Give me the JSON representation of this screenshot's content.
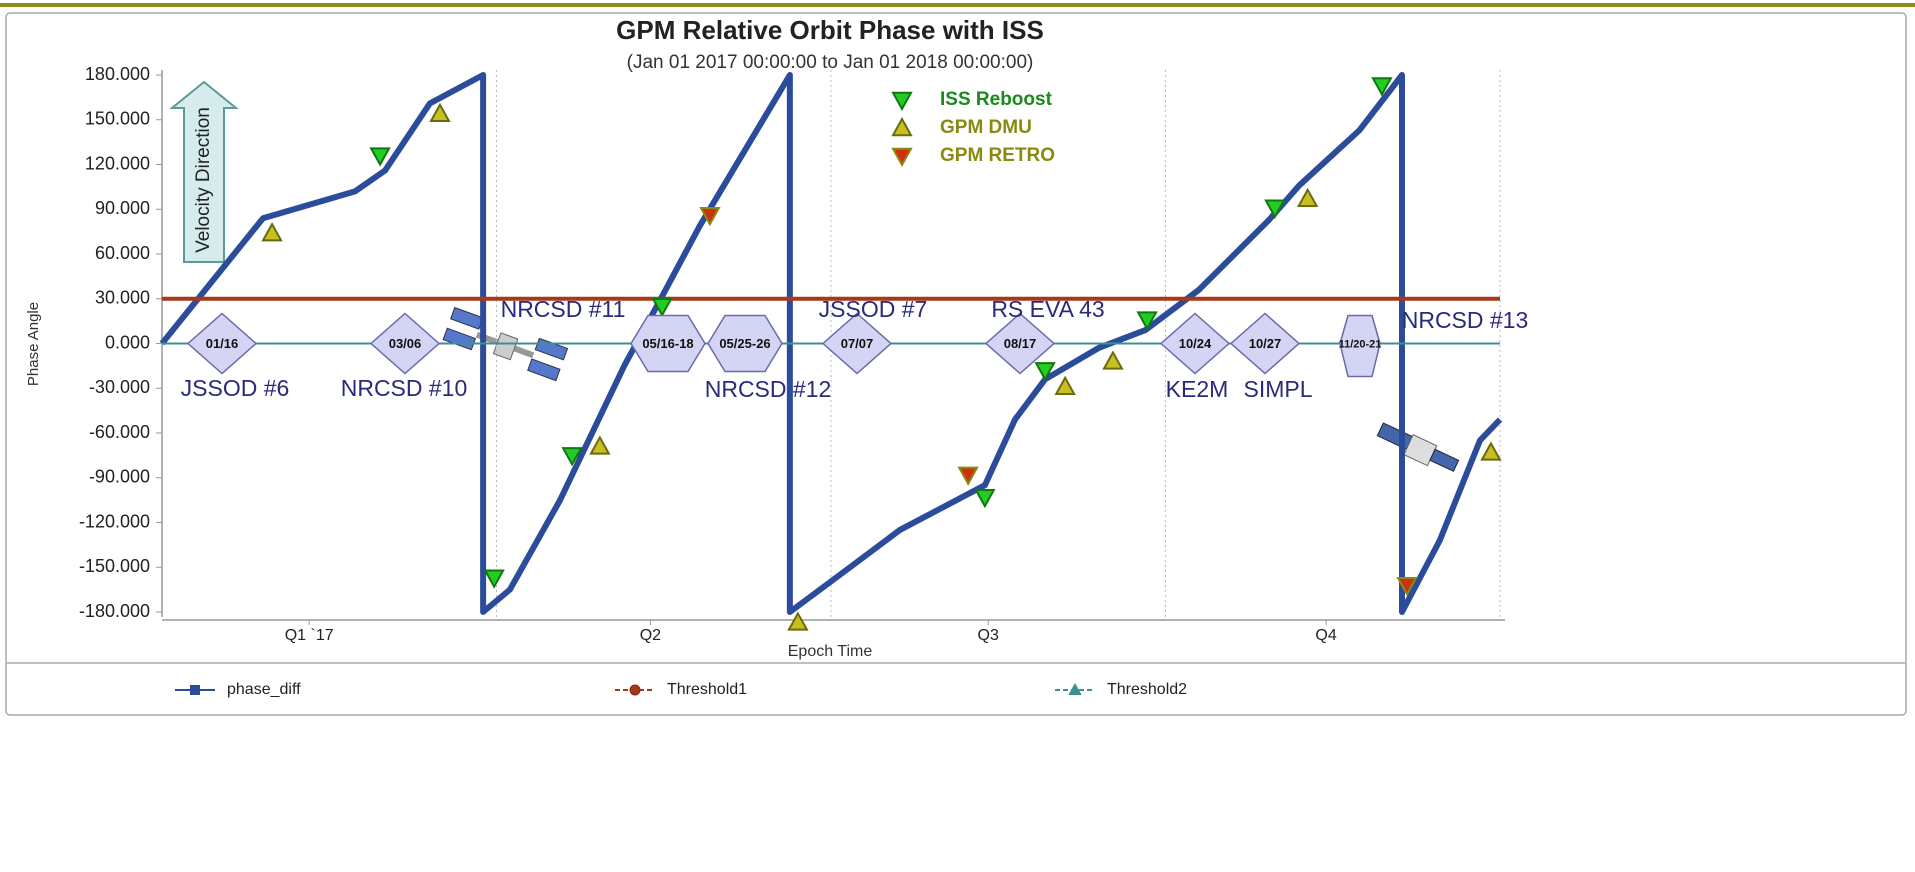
{
  "chart_data": {
    "type": "line",
    "title": "GPM Relative Orbit Phase with ISS",
    "subtitle": "(Jan 01 2017 00:00:00 to Jan 01 2018 00:00:00)",
    "x_label": "Epoch Time",
    "y_label": "Phase Angle",
    "arrow_label": "Velocity Direction",
    "xlim": [
      0,
      4
    ],
    "xticks": [
      {
        "value": 0.44,
        "label": "Q1 `17"
      },
      {
        "value": 1.46,
        "label": "Q2"
      },
      {
        "value": 2.47,
        "label": "Q3"
      },
      {
        "value": 3.48,
        "label": "Q4"
      }
    ],
    "xgrid": [
      1,
      2,
      3,
      4
    ],
    "ylim": [
      -180,
      180
    ],
    "yticks": [
      {
        "value": 180,
        "label": "180.000"
      },
      {
        "value": 150,
        "label": "150.000"
      },
      {
        "value": 120,
        "label": "120.000"
      },
      {
        "value": 90,
        "label": "90.000"
      },
      {
        "value": 60,
        "label": "60.000"
      },
      {
        "value": 30,
        "label": "30.000"
      },
      {
        "value": 0,
        "label": "0.000"
      },
      {
        "value": -30,
        "label": "-30.000"
      },
      {
        "value": -60,
        "label": "-60.000"
      },
      {
        "value": -90,
        "label": "-90.000"
      },
      {
        "value": -120,
        "label": "-120.000"
      },
      {
        "value": -150,
        "label": "-150.000"
      },
      {
        "value": -180,
        "label": "-180.000"
      }
    ],
    "series": [
      {
        "name": "phase_diff",
        "type": "line",
        "color": "#2b4c9b",
        "marker": "square",
        "x": [
          0,
          0.302,
          0.577,
          0.667,
          0.801,
          0.96,
          0.96,
          1.04,
          1.19,
          1.384,
          1.489,
          1.608,
          1.877,
          1.877,
          2.057,
          2.206,
          2.46,
          2.55,
          2.64,
          2.8,
          2.94,
          3.1,
          3.31,
          3.4,
          3.58,
          3.707,
          3.707,
          3.82,
          3.94,
          4.0
        ],
        "values": [
          0,
          84,
          102,
          116,
          161,
          180,
          -180,
          -165,
          -105,
          -14,
          29,
          79,
          180,
          -180,
          -150,
          -125,
          -95,
          -51,
          -24,
          -3,
          9,
          36,
          83,
          106,
          143,
          180,
          -180,
          -132,
          -65,
          -51
        ]
      },
      {
        "name": "Threshold1",
        "type": "line",
        "color": "#a8381a",
        "marker": "circle",
        "x": [
          0,
          4
        ],
        "values": [
          30,
          30
        ]
      },
      {
        "name": "Threshold2",
        "type": "line",
        "color": "#3f8f8f",
        "marker": "triangle",
        "x": [
          0,
          4
        ],
        "values": [
          0,
          0
        ]
      },
      {
        "name": "ISS Reboost",
        "type": "scatter",
        "color": "#22cc22",
        "label_color": "#1a8a1a",
        "marker": "triangle-down",
        "x": [
          0.652,
          0.993,
          1.226,
          1.495,
          2.46,
          2.64,
          2.945,
          3.327,
          3.647
        ],
        "values": [
          126,
          -157,
          -75,
          25,
          -103,
          -18,
          16,
          91,
          173
        ]
      },
      {
        "name": "GPM DMU",
        "type": "scatter",
        "color": "#c8c020",
        "label_color": "#8a8a10",
        "marker": "triangle-up",
        "x": [
          0.329,
          0.831,
          1.309,
          1.901,
          2.7,
          2.843,
          3.425,
          3.973
        ],
        "values": [
          74,
          154,
          -69,
          -187,
          -29,
          -12,
          97,
          -73
        ]
      },
      {
        "name": "GPM RETRO",
        "type": "scatter",
        "color": "#d03010",
        "label_color": "#8a8a10",
        "marker": "triangle-down",
        "x": [
          1.638,
          2.41,
          3.722
        ],
        "values": [
          86,
          -88,
          -162
        ]
      }
    ],
    "events": [
      {
        "date": "01/16",
        "label": "JSSOD #6"
      },
      {
        "date": "03/06",
        "label": "NRCSD #10"
      },
      {
        "date": "05/16-18",
        "label": "NRCSD #11"
      },
      {
        "date": "05/25-26",
        "label": "NRCSD #12"
      },
      {
        "date": "07/07",
        "label": "JSSOD #7"
      },
      {
        "date": "08/17",
        "label": "RS EVA 43"
      },
      {
        "date": "10/24",
        "label": "KE2M"
      },
      {
        "date": "10/27",
        "label": "SIMPL"
      },
      {
        "date": "11/20-21",
        "label": "NRCSD #13"
      }
    ]
  }
}
